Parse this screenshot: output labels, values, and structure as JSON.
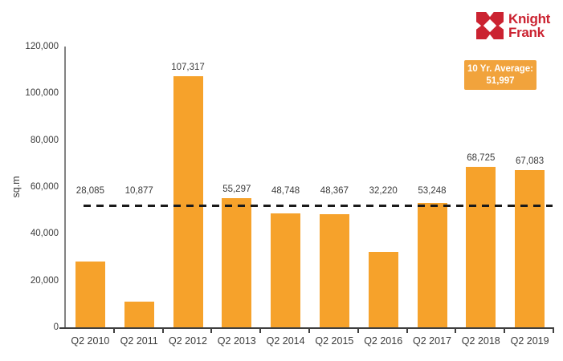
{
  "logo": {
    "line1": "Knight",
    "line2": "Frank",
    "brand_color": "#CB2331"
  },
  "average_callout": {
    "line1": "10 Yr. Average:",
    "line2": "51,997",
    "bg_color": "#F1A33C"
  },
  "chart_data": {
    "type": "bar",
    "title": "",
    "xlabel": "",
    "ylabel": "sq.m",
    "categories": [
      "Q2 2010",
      "Q2 2011",
      "Q2 2012",
      "Q2 2013",
      "Q2 2014",
      "Q2 2015",
      "Q2 2016",
      "Q2 2017",
      "Q2 2018",
      "Q2 2019"
    ],
    "values": [
      28085,
      10877,
      107317,
      55297,
      48748,
      48367,
      32220,
      53248,
      68725,
      67083
    ],
    "value_labels": [
      "28,085",
      "10,877",
      "107,317",
      "55,297",
      "48,748",
      "48,367",
      "32,220",
      "53,248",
      "68,725",
      "67,083"
    ],
    "ylim": [
      0,
      120000
    ],
    "ytick_step": 20000,
    "ytick_labels": [
      "0",
      "20,000",
      "40,000",
      "60,000",
      "80,000",
      "100,000",
      "120,000"
    ],
    "average_line_value": 51997,
    "bar_color": "#F6A22B",
    "average_line_color": "#1a1a1a",
    "grid": false,
    "legend": false
  }
}
